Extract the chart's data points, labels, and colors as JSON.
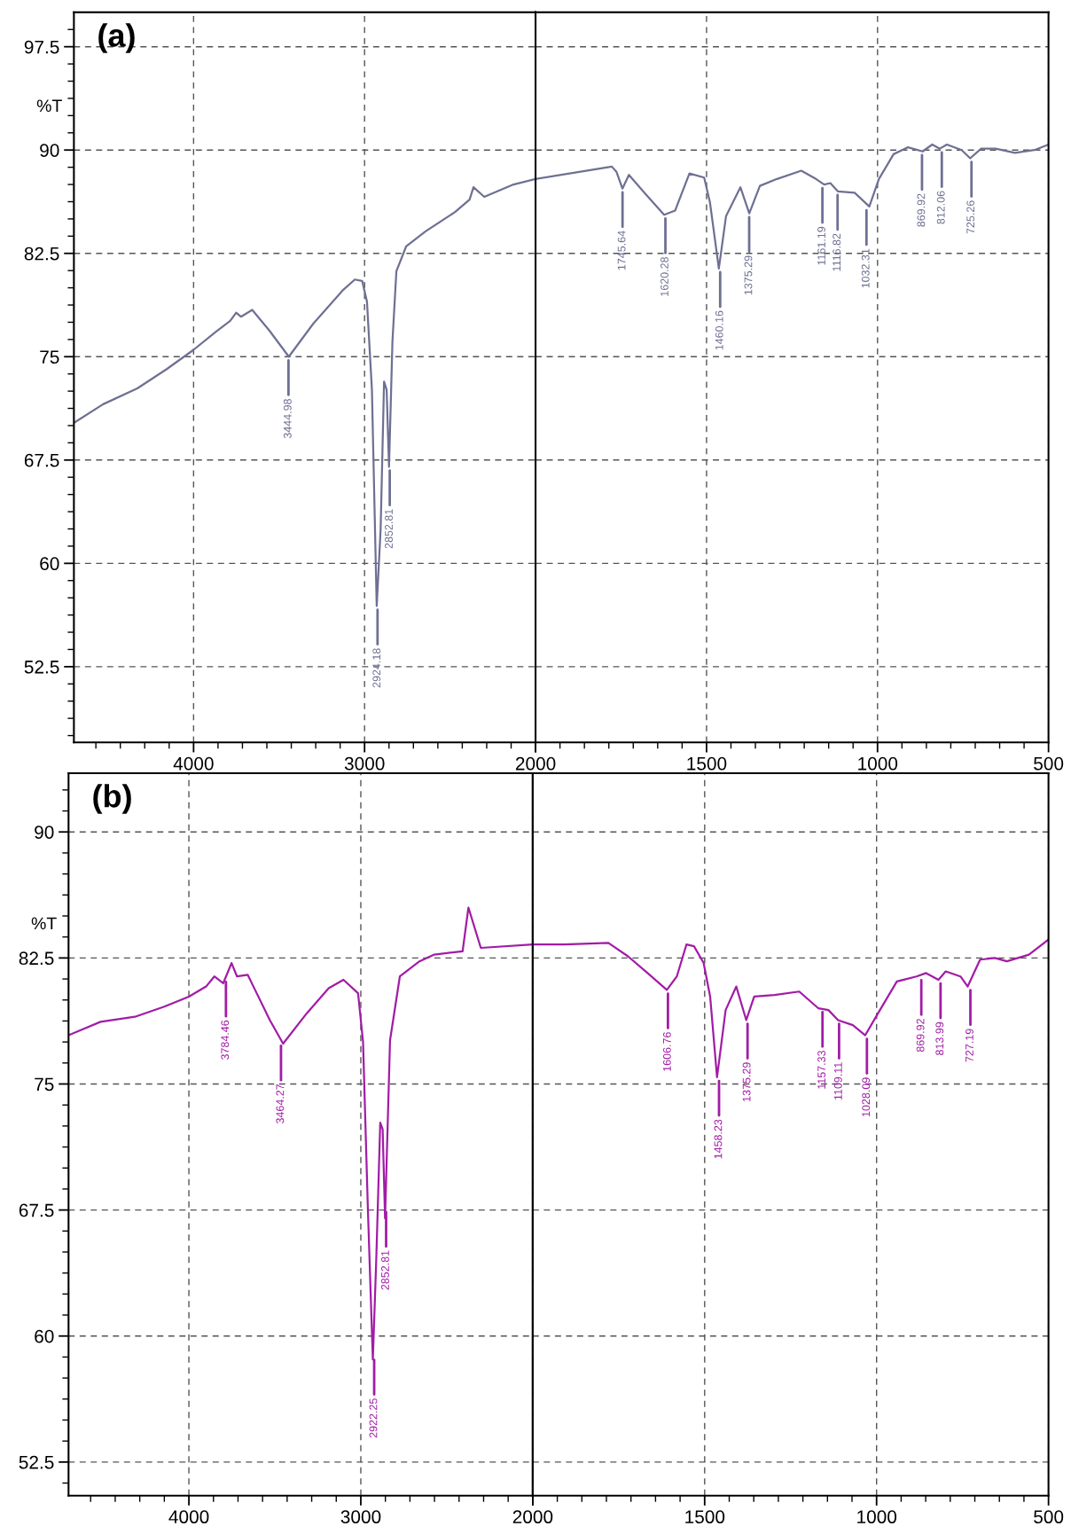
{
  "chart_data": [
    {
      "type": "line",
      "title": "(a)",
      "ylabel": "%T",
      "xlim": [
        4700,
        2000
      ],
      "ylim": [
        47,
        100
      ],
      "xticks": [
        4000,
        3000,
        {
          "value": 2000,
          "label": null
        }
      ],
      "yticks": [
        52.5,
        60,
        67.5,
        75,
        82.5,
        90,
        97.5
      ],
      "grid": true,
      "x": [
        4700,
        4529,
        4329,
        4157,
        4000,
        3871,
        3786,
        3751,
        3723,
        3657,
        3557,
        3443,
        3300,
        3129,
        3057,
        3014,
        2986,
        2957,
        2929,
        2906,
        2886,
        2871,
        2857,
        2837,
        2814,
        2757,
        2643,
        2471,
        2386,
        2363,
        2300,
        2129,
        2000
      ],
      "series": [
        {
          "color": "#6e7093",
          "values": [
            70.2,
            71.55,
            72.7,
            74.1,
            75.5,
            76.8,
            77.6,
            78.2,
            77.9,
            78.4,
            76.9,
            75.0,
            77.4,
            79.8,
            80.6,
            80.5,
            79.0,
            72.6,
            56.9,
            62.5,
            73.2,
            72.6,
            67.0,
            76.1,
            81.2,
            83.0,
            84.1,
            85.5,
            86.4,
            87.3,
            86.6,
            87.5,
            87.9
          ]
        }
      ],
      "annotations": [
        {
          "text": "3444.98",
          "x": 3444.98,
          "y": 75.0
        },
        {
          "text": "2924.18",
          "x": 2924.18,
          "y": 56.9
        },
        {
          "text": "2852.81",
          "x": 2852.81,
          "y": 67.0
        }
      ]
    },
    {
      "type": "line",
      "xlim": [
        2000,
        500
      ],
      "ylim": [
        47,
        100
      ],
      "xticks": [
        2000,
        1500,
        1000,
        500
      ],
      "yticks": [
        52.5,
        60,
        67.5,
        75,
        82.5,
        90,
        97.5
      ],
      "grid": true,
      "tick_labels": "x",
      "x": [
        2000,
        1777,
        1763,
        1746,
        1727,
        1678,
        1624,
        1592,
        1550,
        1507,
        1490,
        1464,
        1443,
        1401,
        1375,
        1344,
        1294,
        1223,
        1180,
        1156,
        1138,
        1116,
        1067,
        1024,
        996,
        953,
        911,
        868,
        840,
        818,
        797,
        754,
        729,
        697,
        655,
        598,
        541,
        500
      ],
      "series": [
        {
          "color": "#6e7093",
          "values": [
            87.9,
            88.8,
            88.4,
            87.2,
            88.2,
            86.8,
            85.3,
            85.6,
            88.3,
            88.0,
            86.2,
            81.4,
            85.2,
            87.3,
            85.4,
            87.4,
            87.9,
            88.5,
            87.9,
            87.5,
            87.6,
            87.0,
            86.9,
            85.9,
            87.9,
            89.7,
            90.2,
            89.9,
            90.4,
            90.1,
            90.4,
            90.0,
            89.4,
            90.1,
            90.1,
            89.8,
            90.0,
            90.4
          ]
        }
      ],
      "annotations": [
        {
          "text": "1745.64",
          "x": 1745.64,
          "y": 87.2
        },
        {
          "text": "1620.28",
          "x": 1620.28,
          "y": 85.3
        },
        {
          "text": "1460.16",
          "x": 1460.16,
          "y": 81.4
        },
        {
          "text": "1375.29",
          "x": 1375.29,
          "y": 85.4
        },
        {
          "text": "1161.19",
          "x": 1161.19,
          "y": 87.5
        },
        {
          "text": "1116.82",
          "x": 1116.82,
          "y": 87.0
        },
        {
          "text": "1032.31",
          "x": 1032.31,
          "y": 85.9
        },
        {
          "text": "869.92",
          "x": 869.92,
          "y": 89.9
        },
        {
          "text": "812.06",
          "x": 812.06,
          "y": 90.1
        },
        {
          "text": "725.26",
          "x": 725.26,
          "y": 89.4
        }
      ]
    },
    {
      "type": "line",
      "title": "(b)",
      "ylabel": "%T",
      "xlim": [
        4700,
        2000
      ],
      "ylim": [
        50.5,
        93.5
      ],
      "xticks": [
        4000,
        3000,
        {
          "value": 2000,
          "label": null
        }
      ],
      "yticks": [
        52.5,
        60,
        67.5,
        75,
        82.5,
        90
      ],
      "grid": true,
      "x": [
        4700,
        4514,
        4314,
        4143,
        4000,
        3900,
        3852,
        3800,
        3752,
        3720,
        3658,
        3615,
        3529,
        3452,
        3315,
        3187,
        3101,
        3016,
        2987,
        2959,
        2930,
        2910,
        2887,
        2873,
        2859,
        2830,
        2773,
        2659,
        2573,
        2408,
        2374,
        2302,
        2000
      ],
      "series": [
        {
          "color": "#a21ca6",
          "values": [
            77.9,
            78.7,
            79.0,
            79.6,
            80.2,
            80.8,
            81.4,
            81.0,
            82.2,
            81.4,
            81.5,
            80.6,
            78.8,
            77.4,
            79.2,
            80.7,
            81.2,
            80.4,
            77.5,
            67.6,
            58.6,
            64.6,
            72.7,
            72.3,
            67.0,
            77.6,
            81.4,
            82.3,
            82.7,
            82.9,
            85.5,
            83.1,
            83.3
          ]
        }
      ],
      "annotations": [
        {
          "text": "3784.46",
          "x": 3784.46,
          "y": 81.3
        },
        {
          "text": "3464.27",
          "x": 3464.27,
          "y": 77.5
        },
        {
          "text": "2922.25",
          "x": 2922.25,
          "y": 58.8
        },
        {
          "text": "2852.81",
          "x": 2852.81,
          "y": 67.6
        }
      ]
    },
    {
      "type": "line",
      "xlim": [
        2000,
        500
      ],
      "ylim": [
        50.5,
        93.5
      ],
      "xticks": [
        2000,
        1500,
        1000,
        500
      ],
      "yticks": [
        52.5,
        60,
        67.5,
        75,
        82.5,
        90
      ],
      "grid": true,
      "tick_labels": "x",
      "x": [
        2000,
        1908,
        1780,
        1723,
        1666,
        1610,
        1581,
        1553,
        1531,
        1503,
        1484,
        1464,
        1439,
        1408,
        1379,
        1356,
        1297,
        1225,
        1169,
        1140,
        1112,
        1069,
        1033,
        996,
        941,
        884,
        856,
        820,
        799,
        756,
        735,
        699,
        656,
        621,
        557,
        500
      ],
      "series": [
        {
          "color": "#a21ca6",
          "values": [
            83.3,
            83.3,
            83.4,
            82.6,
            81.6,
            80.6,
            81.4,
            83.3,
            83.2,
            82.2,
            80.2,
            75.4,
            79.4,
            80.8,
            78.8,
            80.2,
            80.3,
            80.5,
            79.5,
            79.4,
            78.8,
            78.5,
            77.9,
            79.2,
            81.1,
            81.4,
            81.6,
            81.2,
            81.7,
            81.4,
            80.8,
            82.4,
            82.5,
            82.3,
            82.7,
            83.6
          ]
        }
      ],
      "annotations": [
        {
          "text": "1606.76",
          "x": 1606.76,
          "y": 80.6
        },
        {
          "text": "1458.23",
          "x": 1458.23,
          "y": 75.4
        },
        {
          "text": "1375.29",
          "x": 1375.29,
          "y": 78.8
        },
        {
          "text": "1157.33",
          "x": 1157.33,
          "y": 79.5
        },
        {
          "text": "1109.11",
          "x": 1109.11,
          "y": 78.8
        },
        {
          "text": "1028.09",
          "x": 1028.09,
          "y": 77.9
        },
        {
          "text": "869.92",
          "x": 869.92,
          "y": 81.4
        },
        {
          "text": "813.99",
          "x": 813.99,
          "y": 81.2
        },
        {
          "text": "727.19",
          "x": 727.19,
          "y": 80.8
        }
      ]
    }
  ]
}
